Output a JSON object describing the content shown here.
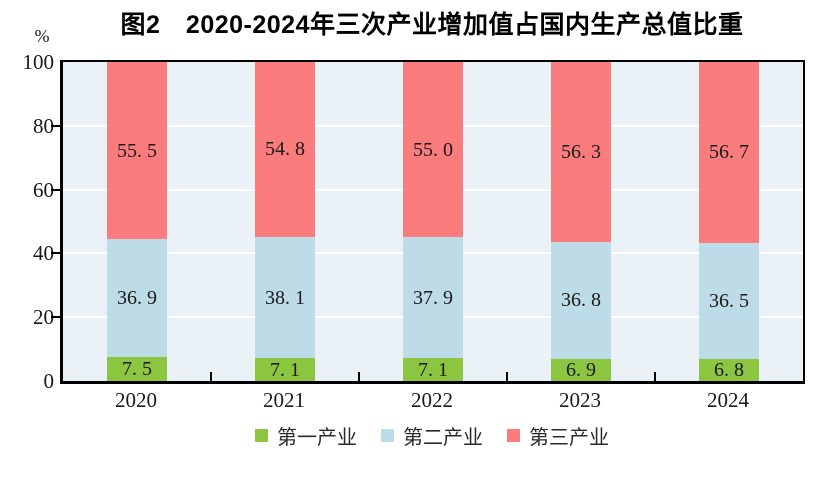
{
  "title": "图2　2020-2024年三次产业增加值占国内生产总值比重",
  "y_axis": {
    "unit": "%",
    "ticks": [
      100,
      80,
      60,
      40,
      20,
      0
    ]
  },
  "colors": {
    "plot_background": "#eaf1f7",
    "gridline": "#ffffff",
    "axis_frame": "#000000",
    "primary_industry": "#8cc540",
    "secondary_industry": "#bddce8",
    "tertiary_industry": "#fa7c7c"
  },
  "chart_data": {
    "type": "bar",
    "stacked": true,
    "categories": [
      "2020",
      "2021",
      "2022",
      "2023",
      "2024"
    ],
    "series": [
      {
        "name": "第一产业",
        "color": "#8cc540",
        "values": [
          7.5,
          7.1,
          7.1,
          6.9,
          6.8
        ]
      },
      {
        "name": "第二产业",
        "color": "#bddce8",
        "values": [
          36.9,
          38.1,
          37.9,
          36.8,
          36.5
        ]
      },
      {
        "name": "第三产业",
        "color": "#fa7c7c",
        "values": [
          55.5,
          54.8,
          55.0,
          56.3,
          56.7
        ]
      }
    ],
    "title": "图2　2020-2024年三次产业增加值占国内生产总值比重",
    "xlabel": "",
    "ylabel": "%",
    "ylim": [
      0,
      100
    ],
    "grid": true,
    "legend_position": "bottom",
    "data_labels": true
  }
}
